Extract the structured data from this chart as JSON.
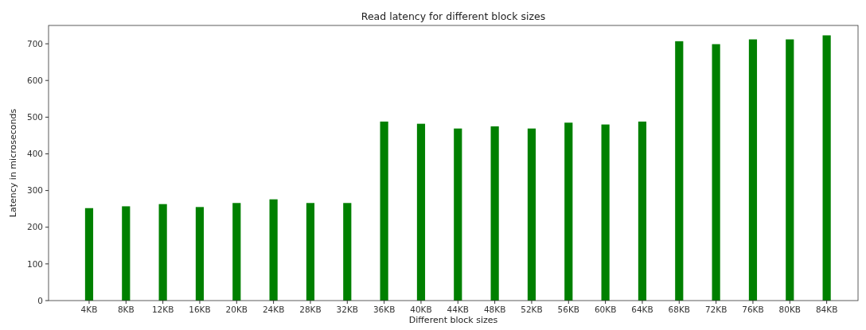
{
  "chart_data": {
    "type": "bar",
    "title": "Read latency for different block sizes",
    "xlabel": "Different block sizes",
    "ylabel": "Latency in microseconds",
    "categories": [
      "4KB",
      "8KB",
      "12KB",
      "16KB",
      "20KB",
      "24KB",
      "28KB",
      "32KB",
      "36KB",
      "40KB",
      "44KB",
      "48KB",
      "52KB",
      "56KB",
      "60KB",
      "64KB",
      "68KB",
      "72KB",
      "76KB",
      "80KB",
      "84KB"
    ],
    "values": [
      252,
      257,
      263,
      255,
      266,
      276,
      266,
      266,
      488,
      482,
      469,
      475,
      469,
      485,
      480,
      488,
      707,
      699,
      712,
      712,
      723
    ],
    "color": "#008000",
    "ylim": [
      0,
      750
    ],
    "yticks": [
      0,
      100,
      200,
      300,
      400,
      500,
      600,
      700
    ],
    "grid": false
  }
}
